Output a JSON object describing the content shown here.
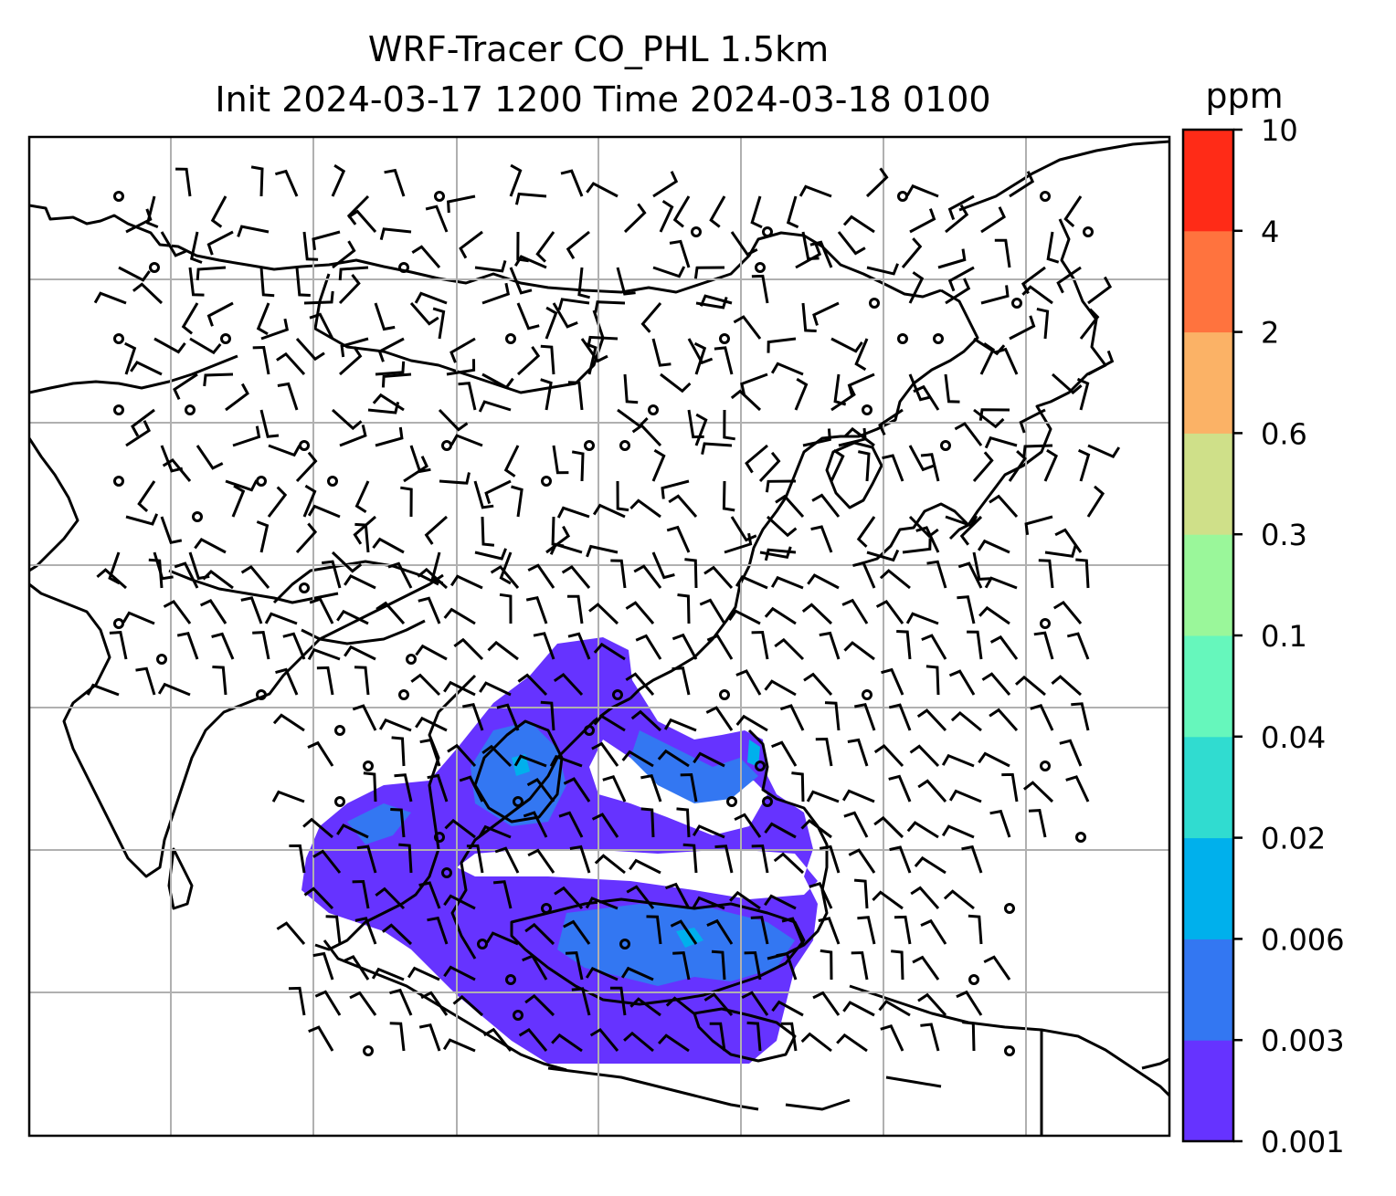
{
  "title": {
    "line1": "WRF-Tracer CO_PHL 1.5km",
    "line2": "Init 2024-03-17 1200 Time 2024-03-18 0100"
  },
  "colorbar": {
    "unit": "ppm",
    "levels": [
      "0.001",
      "0.003",
      "0.006",
      "0.02",
      "0.04",
      "0.1",
      "0.3",
      "0.6",
      "2",
      "4",
      "10"
    ],
    "colors": [
      "#6633ff",
      "#3377f2",
      "#00b0ec",
      "#30dcd0",
      "#66f7bc",
      "#9af79a",
      "#cfe089",
      "#fbb266",
      "#ff733e",
      "#ff2b17"
    ]
  },
  "map": {
    "gridlines": true,
    "plume_colors": [
      "#6633ff",
      "#3377f2",
      "#00b0ec"
    ]
  }
}
